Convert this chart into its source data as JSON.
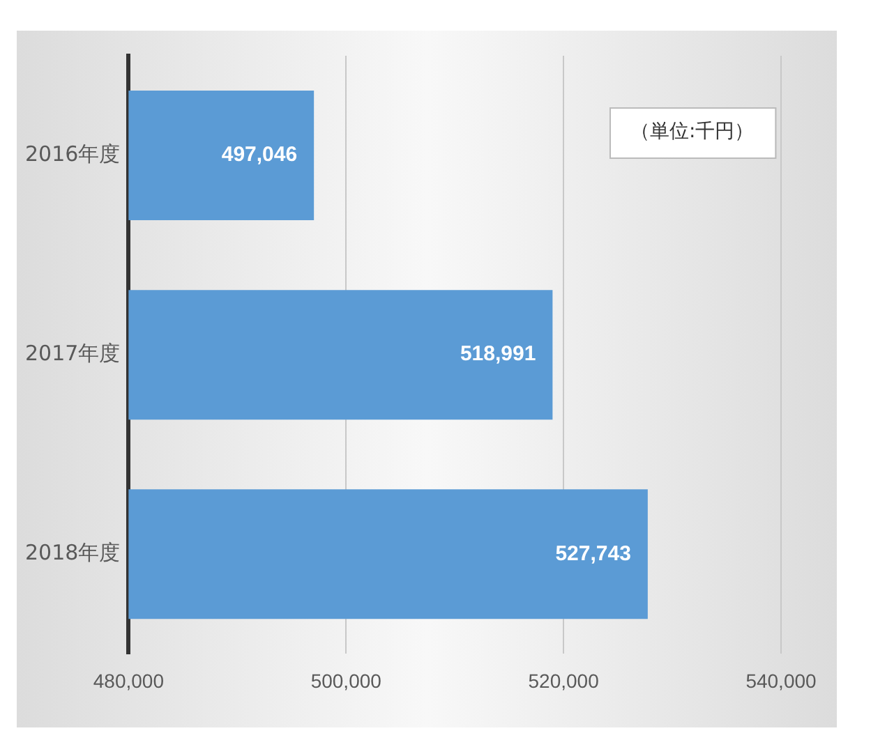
{
  "chart_data": {
    "type": "bar",
    "orientation": "horizontal",
    "categories": [
      "2016年度",
      "2017年度",
      "2018年度"
    ],
    "values": [
      497046,
      518991,
      527743
    ],
    "value_labels": [
      "497,046",
      "518,991",
      "527,743"
    ],
    "color": "#5b9bd5",
    "xlim": [
      480000,
      540000
    ],
    "xticks": [
      {
        "value": 480000,
        "label": "480,000"
      },
      {
        "value": 500000,
        "label": "500,000"
      },
      {
        "value": 520000,
        "label": "520,000"
      },
      {
        "value": 540000,
        "label": "540,000"
      }
    ],
    "grid": "x",
    "legend": false,
    "annotations": [
      "（単位:千円）"
    ]
  }
}
